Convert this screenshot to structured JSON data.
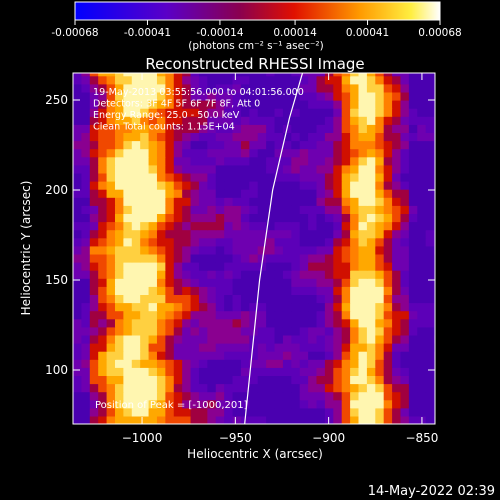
{
  "colorbar": {
    "tick_labels": [
      "-0.00068",
      "-0.00041",
      "-0.00014",
      "0.00014",
      "0.00041",
      "0.00068"
    ],
    "tick_values": [
      -0.00068,
      -0.00041,
      -0.00014,
      0.00014,
      0.00041,
      0.00068
    ],
    "range": [
      -0.00068,
      0.00068
    ],
    "units_label": "(photons cm⁻² s⁻¹ asec⁻²)",
    "colormap": "blue-purple-red-orange-yellow-white"
  },
  "chart_data": {
    "type": "heatmap",
    "title": "Reconstructed RHESSI Image",
    "xlabel": "Heliocentric X (arcsec)",
    "ylabel": "Heliocentric Y (arcsec)",
    "xlim": [
      -1037,
      -843
    ],
    "ylim": [
      70,
      265
    ],
    "x_ticks": [
      -1000,
      -950,
      -900,
      -850
    ],
    "x_tick_labels": [
      "−1000",
      "−950",
      "−900",
      "−850"
    ],
    "y_ticks": [
      100,
      150,
      200,
      250
    ],
    "y_tick_labels": [
      "100",
      "150",
      "200",
      "250"
    ],
    "description_bands": [
      {
        "x_center": -1003,
        "x_halfwidth": 22,
        "level": "high"
      },
      {
        "x_center": -960,
        "x_halfwidth": 15,
        "level": "low"
      },
      {
        "x_center": -925,
        "x_halfwidth": 18,
        "level": "lowest"
      },
      {
        "x_center": -880,
        "x_halfwidth": 15,
        "level": "high"
      }
    ],
    "limb_curve": [
      [
        -945,
        70
      ],
      [
        -942,
        100
      ],
      [
        -937,
        150
      ],
      [
        -930,
        200
      ],
      [
        -921,
        240
      ],
      [
        -914,
        265
      ]
    ],
    "annotations": [
      "19-May-2013 03:55:56.000 to 04:01:56.000",
      "Detectors: 3F 4F 5F 6F 7F 8F, Att 0",
      "Energy Range: 25.0 - 50.0 keV",
      "Clean     Total counts: 1.15E+04"
    ],
    "peak_label": "Position of Peak = [-1000,201]"
  },
  "footer": {
    "timestamp": "14-May-2022 02:39"
  }
}
